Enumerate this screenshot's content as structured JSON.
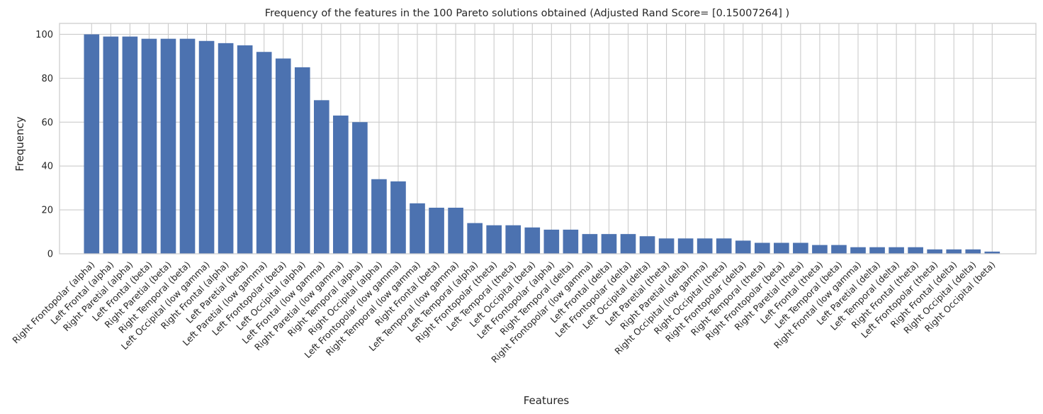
{
  "chart_data": {
    "type": "bar",
    "title": "Frequency of the features in the 100 Pareto solutions obtained (Adjusted Rand Score= [0.15007264] )",
    "xlabel": "Features",
    "ylabel": "Frequency",
    "ylim": [
      0,
      105
    ],
    "yticks": [
      0,
      20,
      40,
      60,
      80,
      100
    ],
    "grid": true,
    "bar_color": "#4c72b0",
    "categories": [
      "Right Frontopolar (alpha)",
      "Left Frontal (alpha)",
      "Right Paretial (alpha)",
      "Left Frontal (beta)",
      "Right Paretial (beta)",
      "Right Temporal (beta)",
      "Left Occipital (low gamma)",
      "Right Frontal (alpha)",
      "Left Paretial (beta)",
      "Left Paretial (low gamma)",
      "Left Frontopolar (beta)",
      "Left Occipital (alpha)",
      "Left Frontal (low gamma)",
      "Right Paretial (low gamma)",
      "Right Temporal (alpha)",
      "Right Occipital (alpha)",
      "Left Frontopolar (low gamma)",
      "Right Temporal (low gamma)",
      "Right Frontal (beta)",
      "Left Temporal (low gamma)",
      "Left Temporal (alpha)",
      "Right Frontopolar (theta)",
      "Left Temporal (theta)",
      "Left Occipital (beta)",
      "Left Frontopolar (alpha)",
      "Right Temporal (delta)",
      "Right Frontopolar (low gamma)",
      "Left Frontal (delta)",
      "Left Frontopolar (delta)",
      "Left Occipital (delta)",
      "Left Paretial (theta)",
      "Right Paretial (delta)",
      "Right Occipital (low gamma)",
      "Right Occipital (theta)",
      "Right Frontopolar (delta)",
      "Right Temporal (theta)",
      "Right Frontopolar (beta)",
      "Right Paretial (theta)",
      "Left Frontal (theta)",
      "Left Temporal (beta)",
      "Right Frontal (low gamma)",
      "Left Paretial (delta)",
      "Left Temporal (delta)",
      "Right Frontal (theta)",
      "Left Frontopolar (theta)",
      "Right Frontal (delta)",
      "Right Occipital (delta)",
      "Right Occipital (beta)"
    ],
    "values": [
      100,
      99,
      99,
      98,
      98,
      98,
      97,
      96,
      95,
      92,
      89,
      85,
      70,
      63,
      60,
      34,
      33,
      23,
      21,
      21,
      14,
      13,
      13,
      12,
      11,
      11,
      9,
      9,
      9,
      8,
      7,
      7,
      7,
      7,
      6,
      5,
      5,
      5,
      4,
      4,
      3,
      3,
      3,
      3,
      2,
      2,
      2,
      1
    ]
  }
}
